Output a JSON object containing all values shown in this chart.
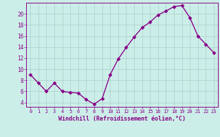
{
  "x": [
    0,
    1,
    2,
    3,
    4,
    5,
    6,
    7,
    8,
    9,
    10,
    11,
    12,
    13,
    14,
    15,
    16,
    17,
    18,
    19,
    20,
    21,
    22,
    23
  ],
  "y": [
    9.0,
    7.5,
    6.0,
    7.5,
    6.0,
    5.8,
    5.7,
    4.5,
    3.7,
    4.7,
    9.0,
    11.8,
    13.9,
    15.8,
    17.5,
    18.5,
    19.8,
    20.5,
    21.3,
    21.5,
    19.3,
    16.0,
    14.5,
    13.0
  ],
  "line_color": "#880088",
  "marker": "D",
  "marker_size": 2.5,
  "bg_color": "#cceee8",
  "grid_color": "#aacccc",
  "tick_color": "#880088",
  "label_color": "#880088",
  "xlabel": "Windchill (Refroidissement éolien,°C)",
  "yticks": [
    4,
    6,
    8,
    10,
    12,
    14,
    16,
    18,
    20
  ],
  "ylim": [
    3.2,
    22.0
  ],
  "xlim": [
    -0.5,
    23.5
  ]
}
